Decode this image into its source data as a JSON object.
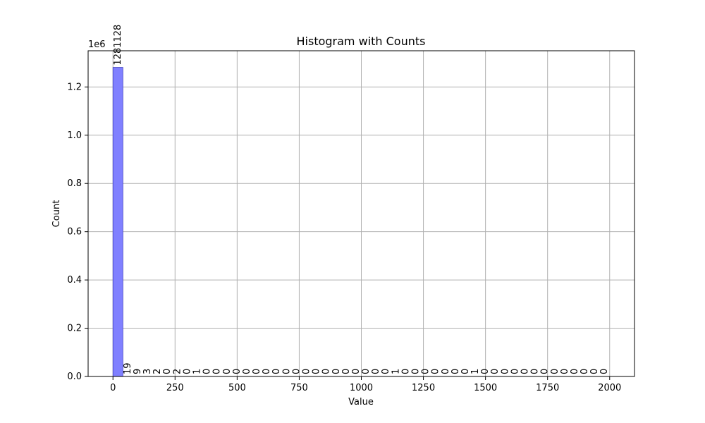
{
  "chart_data": {
    "type": "bar",
    "title": "Histogram with Counts",
    "xlabel": "Value",
    "ylabel": "Count",
    "y_scale_label": "1e6",
    "xlim": [
      -100,
      2100
    ],
    "ylim": [
      0,
      1350000
    ],
    "bin_width": 40,
    "bin_start": 0,
    "x_ticks": [
      0,
      250,
      500,
      750,
      1000,
      1250,
      1500,
      1750,
      2000
    ],
    "x_tick_labels": [
      "0",
      "250",
      "500",
      "750",
      "1000",
      "1250",
      "1500",
      "1750",
      "2000"
    ],
    "y_ticks": [
      0,
      200000,
      400000,
      600000,
      800000,
      1000000,
      1200000
    ],
    "y_tick_labels": [
      "0.0",
      "0.2",
      "0.4",
      "0.6",
      "0.8",
      "1.0",
      "1.2"
    ],
    "counts": [
      1281128,
      19,
      9,
      3,
      2,
      0,
      2,
      0,
      1,
      0,
      0,
      0,
      0,
      0,
      0,
      0,
      0,
      0,
      0,
      0,
      0,
      0,
      0,
      0,
      0,
      0,
      0,
      0,
      1,
      0,
      0,
      0,
      0,
      0,
      0,
      0,
      1,
      0,
      0,
      0,
      0,
      0,
      0,
      0,
      0,
      0,
      0,
      0,
      0,
      0
    ],
    "count_labels": [
      "1281128",
      "19",
      "9",
      "3",
      "2",
      "0",
      "2",
      "0",
      "1",
      "0",
      "0",
      "0",
      "0",
      "0",
      "0",
      "0",
      "0",
      "0",
      "0",
      "0",
      "0",
      "0",
      "0",
      "0",
      "0",
      "0",
      "0",
      "0",
      "1",
      "0",
      "0",
      "0",
      "0",
      "0",
      "0",
      "0",
      "1",
      "0",
      "0",
      "0",
      "0",
      "0",
      "0",
      "0",
      "0",
      "0",
      "0",
      "0",
      "0",
      "0"
    ],
    "grid": true,
    "bar_color": "#8080ff",
    "bar_edge_color": "#4040c0"
  }
}
